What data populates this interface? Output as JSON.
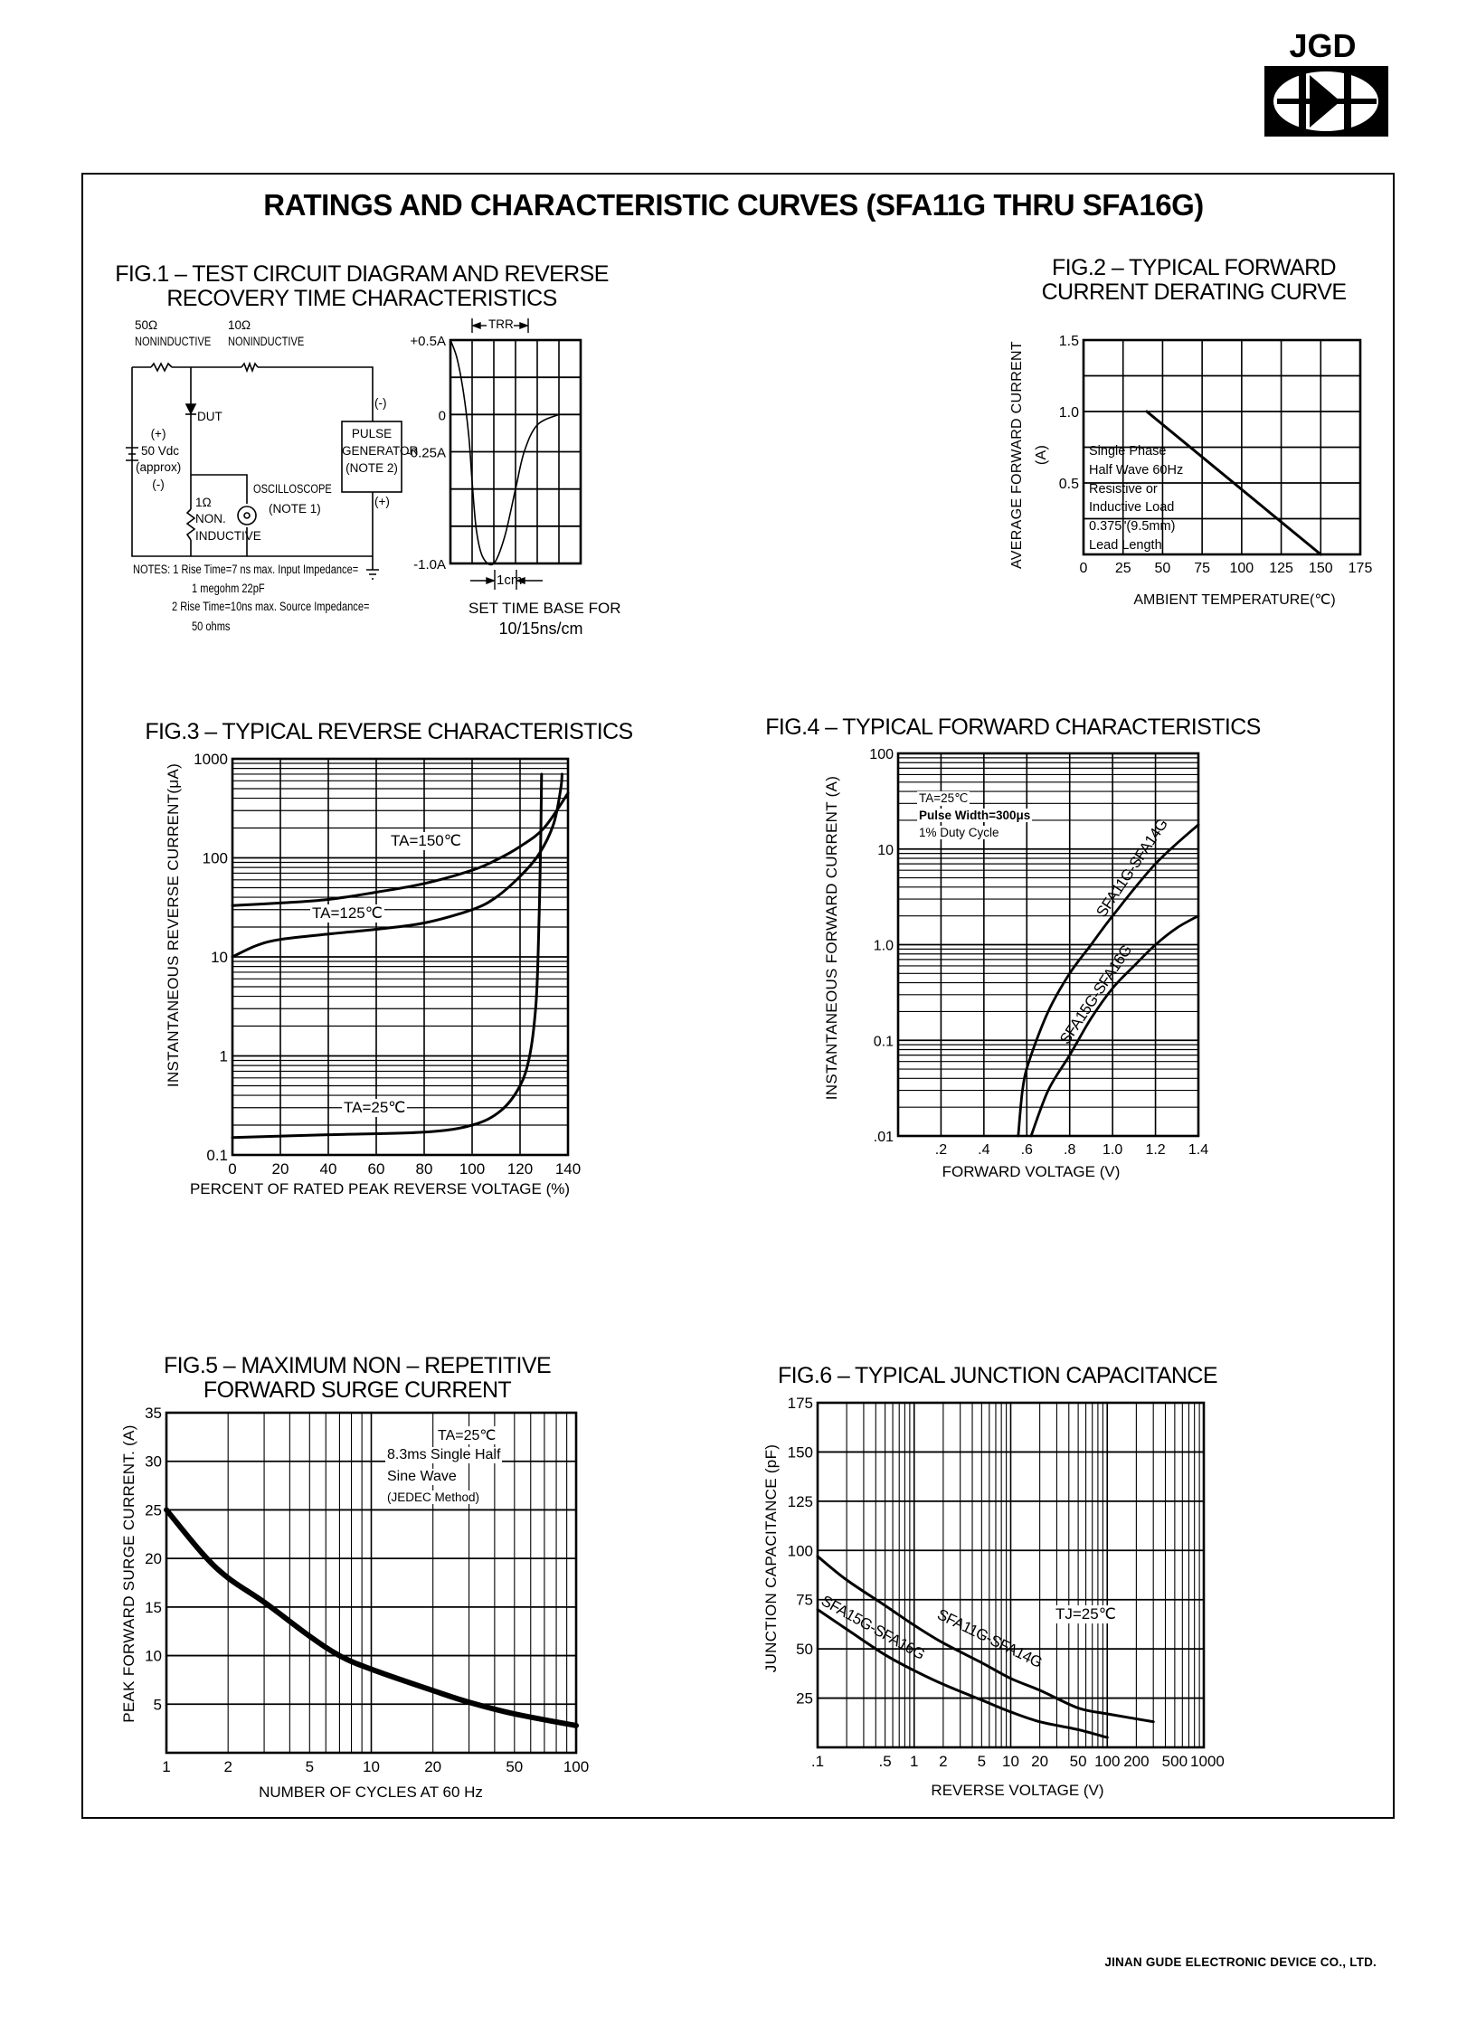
{
  "header": {
    "logo_text": "JGD",
    "title": "RATINGS AND CHARACTERISTIC CURVES (SFA11G THRU SFA16G)"
  },
  "footer": {
    "company": "JINAN GUDE ELECTRONIC DEVICE CO., LTD."
  },
  "circuit": {
    "r1_value": "50Ω",
    "r1_type": "NONINDUCTIVE",
    "r2_value": "10Ω",
    "r2_type": "NONINDUCTIVE",
    "dut": "DUT",
    "source_plus": "(+)",
    "source_value": "50 Vdc",
    "source_approx": "(approx)",
    "source_minus": "(-)",
    "r3_value": "1Ω",
    "r3_type_1": "NON.",
    "r3_type_2": "INDUCTIVE",
    "scope_1": "OSCILLOSCOPE",
    "scope_2": "(NOTE 1)",
    "gen_1": "PULSE",
    "gen_2": "GENERATOR",
    "gen_3": "(NOTE 2)",
    "gen_minus": "(-)",
    "gen_plus": "(+)",
    "notes_1": "NOTES:  1  Rise Time=7 ns max. Input Impedance=",
    "notes_1b": "1 megohm 22pF",
    "notes_2": "2  Rise Time=10ns max. Source Impedance=",
    "notes_2b": "50 ohms"
  },
  "chart_data": [
    {
      "type": "line",
      "title_1": "FIG.1 – TEST CIRCUIT DIAGRAM AND REVERSE",
      "title_2": "RECOVERY TIME CHARACTERISTICS",
      "xscale": "linear",
      "yscale": "linear",
      "xlim": [
        0,
        6
      ],
      "ylim": [
        -1.0,
        0.5
      ],
      "grid": {
        "x_step": 1,
        "y_step": 0.25
      },
      "y_ticks": [
        {
          "value": 0.5,
          "label": "+0.5A"
        },
        {
          "value": 0,
          "label": "0"
        },
        {
          "value": -0.25,
          "label": "-0.25A"
        },
        {
          "value": -1.0,
          "label": "-1.0A"
        }
      ],
      "x_ticks": [],
      "annotations": {
        "trr": "TRR",
        "cm": "1cm",
        "timebase_1": "SET TIME BASE FOR",
        "timebase_2": "10/15ns/cm"
      },
      "series": [
        {
          "points": [
            [
              0,
              0.5
            ],
            [
              0.3,
              0.38
            ],
            [
              0.6,
              0.15
            ],
            [
              0.85,
              -0.15
            ],
            [
              1.0,
              -0.45
            ],
            [
              1.2,
              -0.78
            ],
            [
              1.5,
              -0.96
            ],
            [
              2.0,
              -1.0
            ],
            [
              2.5,
              -0.82
            ],
            [
              3.0,
              -0.5
            ],
            [
              3.4,
              -0.25
            ],
            [
              4.0,
              -0.07
            ],
            [
              5.0,
              0
            ]
          ]
        }
      ]
    },
    {
      "type": "line",
      "title_1": "FIG.2 – TYPICAL FORWARD",
      "title_2": "CURRENT DERATING CURVE",
      "xlabel": "AMBIENT TEMPERATURE(℃)",
      "ylabel": "AVERAGE FORWARD CURRENT",
      "ylabel_unit": "(A)",
      "xscale": "linear",
      "yscale": "linear",
      "xlim": [
        0,
        175
      ],
      "ylim": [
        0,
        1.5
      ],
      "grid": {
        "x_step": 25,
        "y_step": 0.25
      },
      "x_ticks": [
        {
          "value": 0,
          "label": "0"
        },
        {
          "value": 25,
          "label": "25"
        },
        {
          "value": 50,
          "label": "50"
        },
        {
          "value": 75,
          "label": "75"
        },
        {
          "value": 100,
          "label": "100"
        },
        {
          "value": 125,
          "label": "125"
        },
        {
          "value": 150,
          "label": "150"
        },
        {
          "value": 175,
          "label": "175"
        }
      ],
      "y_ticks": [
        {
          "value": 0.5,
          "label": "0.5"
        },
        {
          "value": 1.0,
          "label": "1.0"
        },
        {
          "value": 1.5,
          "label": "1.5"
        }
      ],
      "legend_lines": [
        "Single Phase",
        "Half Wave 60Hz",
        "Resistive or",
        "Inductive Load",
        "0.375\"(9.5mm)",
        "Lead Length"
      ],
      "series": [
        {
          "points": [
            [
              40,
              1.0
            ],
            [
              150,
              0
            ]
          ]
        }
      ]
    },
    {
      "type": "line",
      "title": "FIG.3 – TYPICAL REVERSE CHARACTERISTICS",
      "xlabel": "PERCENT OF RATED  PEAK REVERSE VOLTAGE (%)",
      "ylabel": "INSTANTANEOUS REVERSE CURRENT(μA)",
      "xscale": "linear",
      "yscale": "log",
      "xlim": [
        0,
        140
      ],
      "ylim": [
        0.1,
        1000
      ],
      "grid": {
        "x_step": 20,
        "y_minor": true
      },
      "x_ticks": [
        {
          "value": 0,
          "label": "0"
        },
        {
          "value": 20,
          "label": "20"
        },
        {
          "value": 40,
          "label": "40"
        },
        {
          "value": 60,
          "label": "60"
        },
        {
          "value": 80,
          "label": "80"
        },
        {
          "value": 100,
          "label": "100"
        },
        {
          "value": 120,
          "label": "120"
        },
        {
          "value": 140,
          "label": "140"
        }
      ],
      "y_ticks": [
        {
          "value": 0.1,
          "label": "0.1"
        },
        {
          "value": 1,
          "label": "1"
        },
        {
          "value": 10,
          "label": "10"
        },
        {
          "value": 100,
          "label": "100"
        },
        {
          "value": 1000,
          "label": "1000"
        }
      ],
      "series": [
        {
          "name": "TA=150℃",
          "points": [
            [
              0,
              33
            ],
            [
              20,
              35
            ],
            [
              40,
              38
            ],
            [
              60,
              45
            ],
            [
              80,
              55
            ],
            [
              100,
              75
            ],
            [
              110,
              95
            ],
            [
              120,
              130
            ],
            [
              130,
              200
            ],
            [
              140,
              450
            ]
          ]
        },
        {
          "name": "TA=125℃",
          "points": [
            [
              0,
              10
            ],
            [
              10,
              13
            ],
            [
              20,
              15
            ],
            [
              40,
              17
            ],
            [
              60,
              19
            ],
            [
              80,
              22
            ],
            [
              100,
              30
            ],
            [
              110,
              40
            ],
            [
              120,
              65
            ],
            [
              128,
              110
            ],
            [
              134,
              220
            ],
            [
              137,
              500
            ],
            [
              137.5,
              700
            ]
          ]
        },
        {
          "name": "TA=25℃",
          "points": [
            [
              0,
              0.15
            ],
            [
              40,
              0.16
            ],
            [
              80,
              0.17
            ],
            [
              100,
              0.2
            ],
            [
              112,
              0.28
            ],
            [
              120,
              0.5
            ],
            [
              124,
              1.0
            ],
            [
              126.5,
              3
            ],
            [
              127.5,
              10
            ],
            [
              128.5,
              100
            ],
            [
              129,
              700
            ]
          ]
        }
      ]
    },
    {
      "type": "line",
      "title": "FIG.4 –  TYPICAL FORWARD CHARACTERISTICS",
      "xlabel": "FORWARD VOLTAGE (V)",
      "ylabel": "INSTANTANEOUS   FORWARD  CURRENT (A)",
      "xscale": "linear",
      "yscale": "log",
      "xlim": [
        0,
        1.4
      ],
      "ylim": [
        0.01,
        100
      ],
      "grid": {
        "x_step": 0.2,
        "y_minor": true
      },
      "x_ticks": [
        {
          "value": 0.2,
          "label": ".2"
        },
        {
          "value": 0.4,
          "label": ".4"
        },
        {
          "value": 0.6,
          "label": ".6"
        },
        {
          "value": 0.8,
          "label": ".8"
        },
        {
          "value": 1.0,
          "label": "1.0"
        },
        {
          "value": 1.2,
          "label": "1.2"
        },
        {
          "value": 1.4,
          "label": "1.4"
        }
      ],
      "y_ticks": [
        {
          "value": 0.01,
          "label": ".01"
        },
        {
          "value": 0.1,
          "label": "0.1"
        },
        {
          "value": 1,
          "label": "1.0"
        },
        {
          "value": 10,
          "label": "10"
        },
        {
          "value": 100,
          "label": "100"
        }
      ],
      "conditions": [
        "TA=25℃",
        "Pulse Width=300μs",
        "1% Duty Cycle"
      ],
      "series": [
        {
          "name": "SFA11G-SFA14G",
          "points": [
            [
              0.56,
              0.01
            ],
            [
              0.58,
              0.03
            ],
            [
              0.61,
              0.06
            ],
            [
              0.7,
              0.2
            ],
            [
              0.8,
              0.5
            ],
            [
              0.9,
              1.0
            ],
            [
              1.0,
              2.0
            ],
            [
              1.2,
              7
            ],
            [
              1.4,
              18
            ]
          ]
        },
        {
          "name": "SFA15G-SFA16G",
          "points": [
            [
              0.62,
              0.01
            ],
            [
              0.7,
              0.03
            ],
            [
              0.8,
              0.07
            ],
            [
              0.9,
              0.17
            ],
            [
              1.0,
              0.35
            ],
            [
              1.1,
              0.6
            ],
            [
              1.2,
              1.0
            ],
            [
              1.3,
              1.5
            ],
            [
              1.4,
              2.0
            ]
          ]
        }
      ]
    },
    {
      "type": "line",
      "title_1": "FIG.5 – MAXIMUM NON – REPETITIVE",
      "title_2": "FORWARD SURGE CURRENT",
      "xlabel": "NUMBER OF CYCLES AT 60 Hz",
      "ylabel": "PEAK FORWARD SURGE CURRENT. (A)",
      "xscale": "log",
      "yscale": "linear",
      "xlim": [
        1,
        100
      ],
      "ylim": [
        0,
        35
      ],
      "grid": {
        "x_minor": true,
        "y_step": 5
      },
      "x_ticks": [
        {
          "value": 1,
          "label": "1"
        },
        {
          "value": 2,
          "label": "2"
        },
        {
          "value": 5,
          "label": "5"
        },
        {
          "value": 10,
          "label": "10"
        },
        {
          "value": 20,
          "label": "20"
        },
        {
          "value": 50,
          "label": "50"
        },
        {
          "value": 100,
          "label": "100"
        }
      ],
      "y_ticks": [
        {
          "value": 5,
          "label": "5"
        },
        {
          "value": 10,
          "label": "10"
        },
        {
          "value": 15,
          "label": "15"
        },
        {
          "value": 20,
          "label": "20"
        },
        {
          "value": 25,
          "label": "25"
        },
        {
          "value": 30,
          "label": "30"
        },
        {
          "value": 35,
          "label": "35"
        }
      ],
      "conditions": [
        "TA=25℃",
        "8.3ms Single Half",
        "Sine Wave",
        "(JEDEC Method)"
      ],
      "series": [
        {
          "points": [
            [
              1,
              25
            ],
            [
              1.5,
              20.5
            ],
            [
              2,
              18
            ],
            [
              3,
              15.5
            ],
            [
              5,
              12
            ],
            [
              7,
              10
            ],
            [
              10,
              8.6
            ],
            [
              20,
              6.4
            ],
            [
              30,
              5.2
            ],
            [
              50,
              4.0
            ],
            [
              100,
              2.8
            ]
          ]
        }
      ]
    },
    {
      "type": "line",
      "title": "FIG.6 – TYPICAL JUNCTION CAPACITANCE",
      "xlabel": "REVERSE VOLTAGE (V)",
      "ylabel": "JUNCTION CAPACITANCE (pF)",
      "xscale": "log",
      "yscale": "linear",
      "xlim": [
        0.1,
        1000
      ],
      "ylim": [
        0,
        175
      ],
      "grid": {
        "x_minor": true,
        "y_step": 25
      },
      "x_ticks": [
        {
          "value": 0.1,
          "label": ".1"
        },
        {
          "value": 0.5,
          "label": ".5"
        },
        {
          "value": 1,
          "label": "1"
        },
        {
          "value": 2,
          "label": "2"
        },
        {
          "value": 5,
          "label": "5"
        },
        {
          "value": 10,
          "label": "10"
        },
        {
          "value": 20,
          "label": "20"
        },
        {
          "value": 50,
          "label": "50"
        },
        {
          "value": 100,
          "label": "100"
        },
        {
          "value": 200,
          "label": "200"
        },
        {
          "value": 500,
          "label": "500"
        },
        {
          "value": 1000,
          "label": "1000"
        }
      ],
      "y_ticks": [
        {
          "value": 25,
          "label": "25"
        },
        {
          "value": 50,
          "label": "50"
        },
        {
          "value": 75,
          "label": "75"
        },
        {
          "value": 100,
          "label": "100"
        },
        {
          "value": 125,
          "label": "125"
        },
        {
          "value": 150,
          "label": "150"
        },
        {
          "value": 175,
          "label": "175"
        }
      ],
      "conditions": [
        "TJ=25℃"
      ],
      "series": [
        {
          "name": "SFA11G-SFA14G",
          "points": [
            [
              0.1,
              97
            ],
            [
              0.2,
              85
            ],
            [
              0.5,
              72
            ],
            [
              1,
              62
            ],
            [
              2,
              53
            ],
            [
              5,
              43
            ],
            [
              10,
              35
            ],
            [
              20,
              29
            ],
            [
              50,
              20
            ],
            [
              100,
              17
            ],
            [
              300,
              13
            ]
          ]
        },
        {
          "name": "SFA15G-SFA16G",
          "points": [
            [
              0.1,
              70
            ],
            [
              0.2,
              60
            ],
            [
              0.5,
              47
            ],
            [
              1,
              39
            ],
            [
              2,
              32
            ],
            [
              5,
              24
            ],
            [
              10,
              18
            ],
            [
              20,
              13
            ],
            [
              50,
              9
            ],
            [
              100,
              5
            ]
          ]
        }
      ]
    }
  ]
}
